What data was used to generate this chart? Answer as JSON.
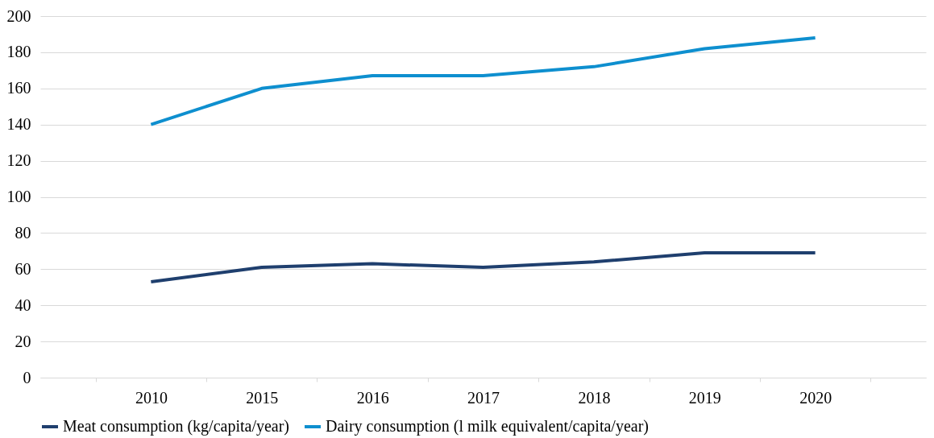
{
  "chart_data": {
    "type": "line",
    "categories": [
      "2010",
      "2015",
      "2016",
      "2017",
      "2018",
      "2019",
      "2020"
    ],
    "series": [
      {
        "name": "Meat consumption (kg/capita/year)",
        "color": "#1f3f6e",
        "values": [
          53,
          61,
          63,
          61,
          64,
          69,
          69
        ]
      },
      {
        "name": "Dairy consumption (l milk equivalent/capita/year)",
        "color": "#0e8fcf",
        "values": [
          140,
          160,
          167,
          167,
          172,
          182,
          188
        ]
      }
    ],
    "ylim": [
      0,
      200
    ],
    "yticks": [
      0,
      20,
      40,
      60,
      80,
      100,
      120,
      140,
      160,
      180,
      200
    ],
    "grid": "y",
    "legend": "bottom",
    "marker": "none",
    "line_style": "solid"
  }
}
